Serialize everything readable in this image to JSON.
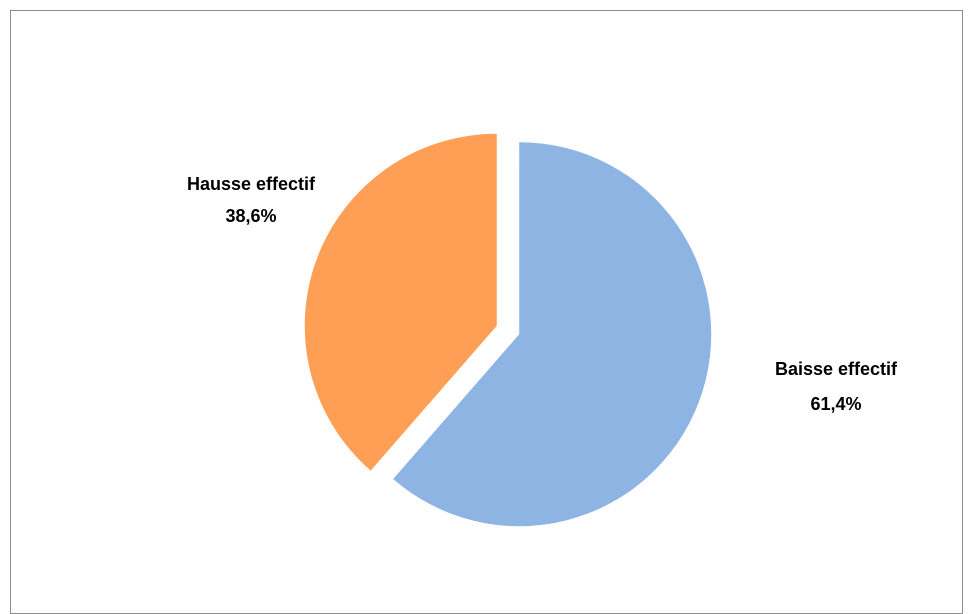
{
  "chart_data": {
    "type": "pie",
    "categories": [
      "Baisse effectif",
      "Hausse effectif"
    ],
    "values": [
      61.4,
      38.6
    ],
    "labels": [
      {
        "name": "Baisse effectif",
        "value": "61,4%"
      },
      {
        "name": "Hausse effectif",
        "value": "38,6%"
      }
    ],
    "colors": [
      "#8EB4E3",
      "#FF9E55"
    ],
    "exploded": true,
    "legend": "none"
  }
}
